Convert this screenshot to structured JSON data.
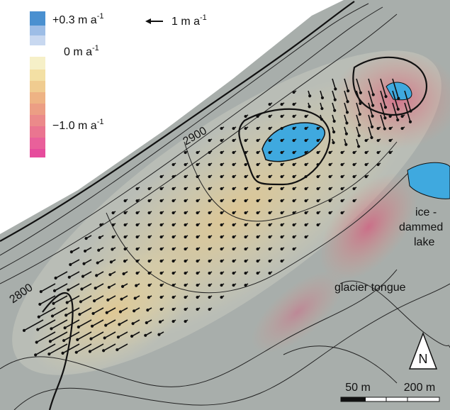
{
  "legend": {
    "items": [
      {
        "label": "+0.3 m a",
        "exponent": "-1"
      },
      {
        "label": "0 m a",
        "exponent": "-1"
      },
      {
        "label": "−1.0 m a",
        "exponent": "-1"
      }
    ],
    "vector": {
      "label": "1 m a",
      "exponent": "-1"
    }
  },
  "contours": [
    "2900",
    "2800"
  ],
  "labels": {
    "lake": [
      "ice -",
      "dammed",
      "lake"
    ],
    "tongue": "glacier tongue"
  },
  "north": "N",
  "scale_bar": [
    "50 m",
    "200 m"
  ]
}
